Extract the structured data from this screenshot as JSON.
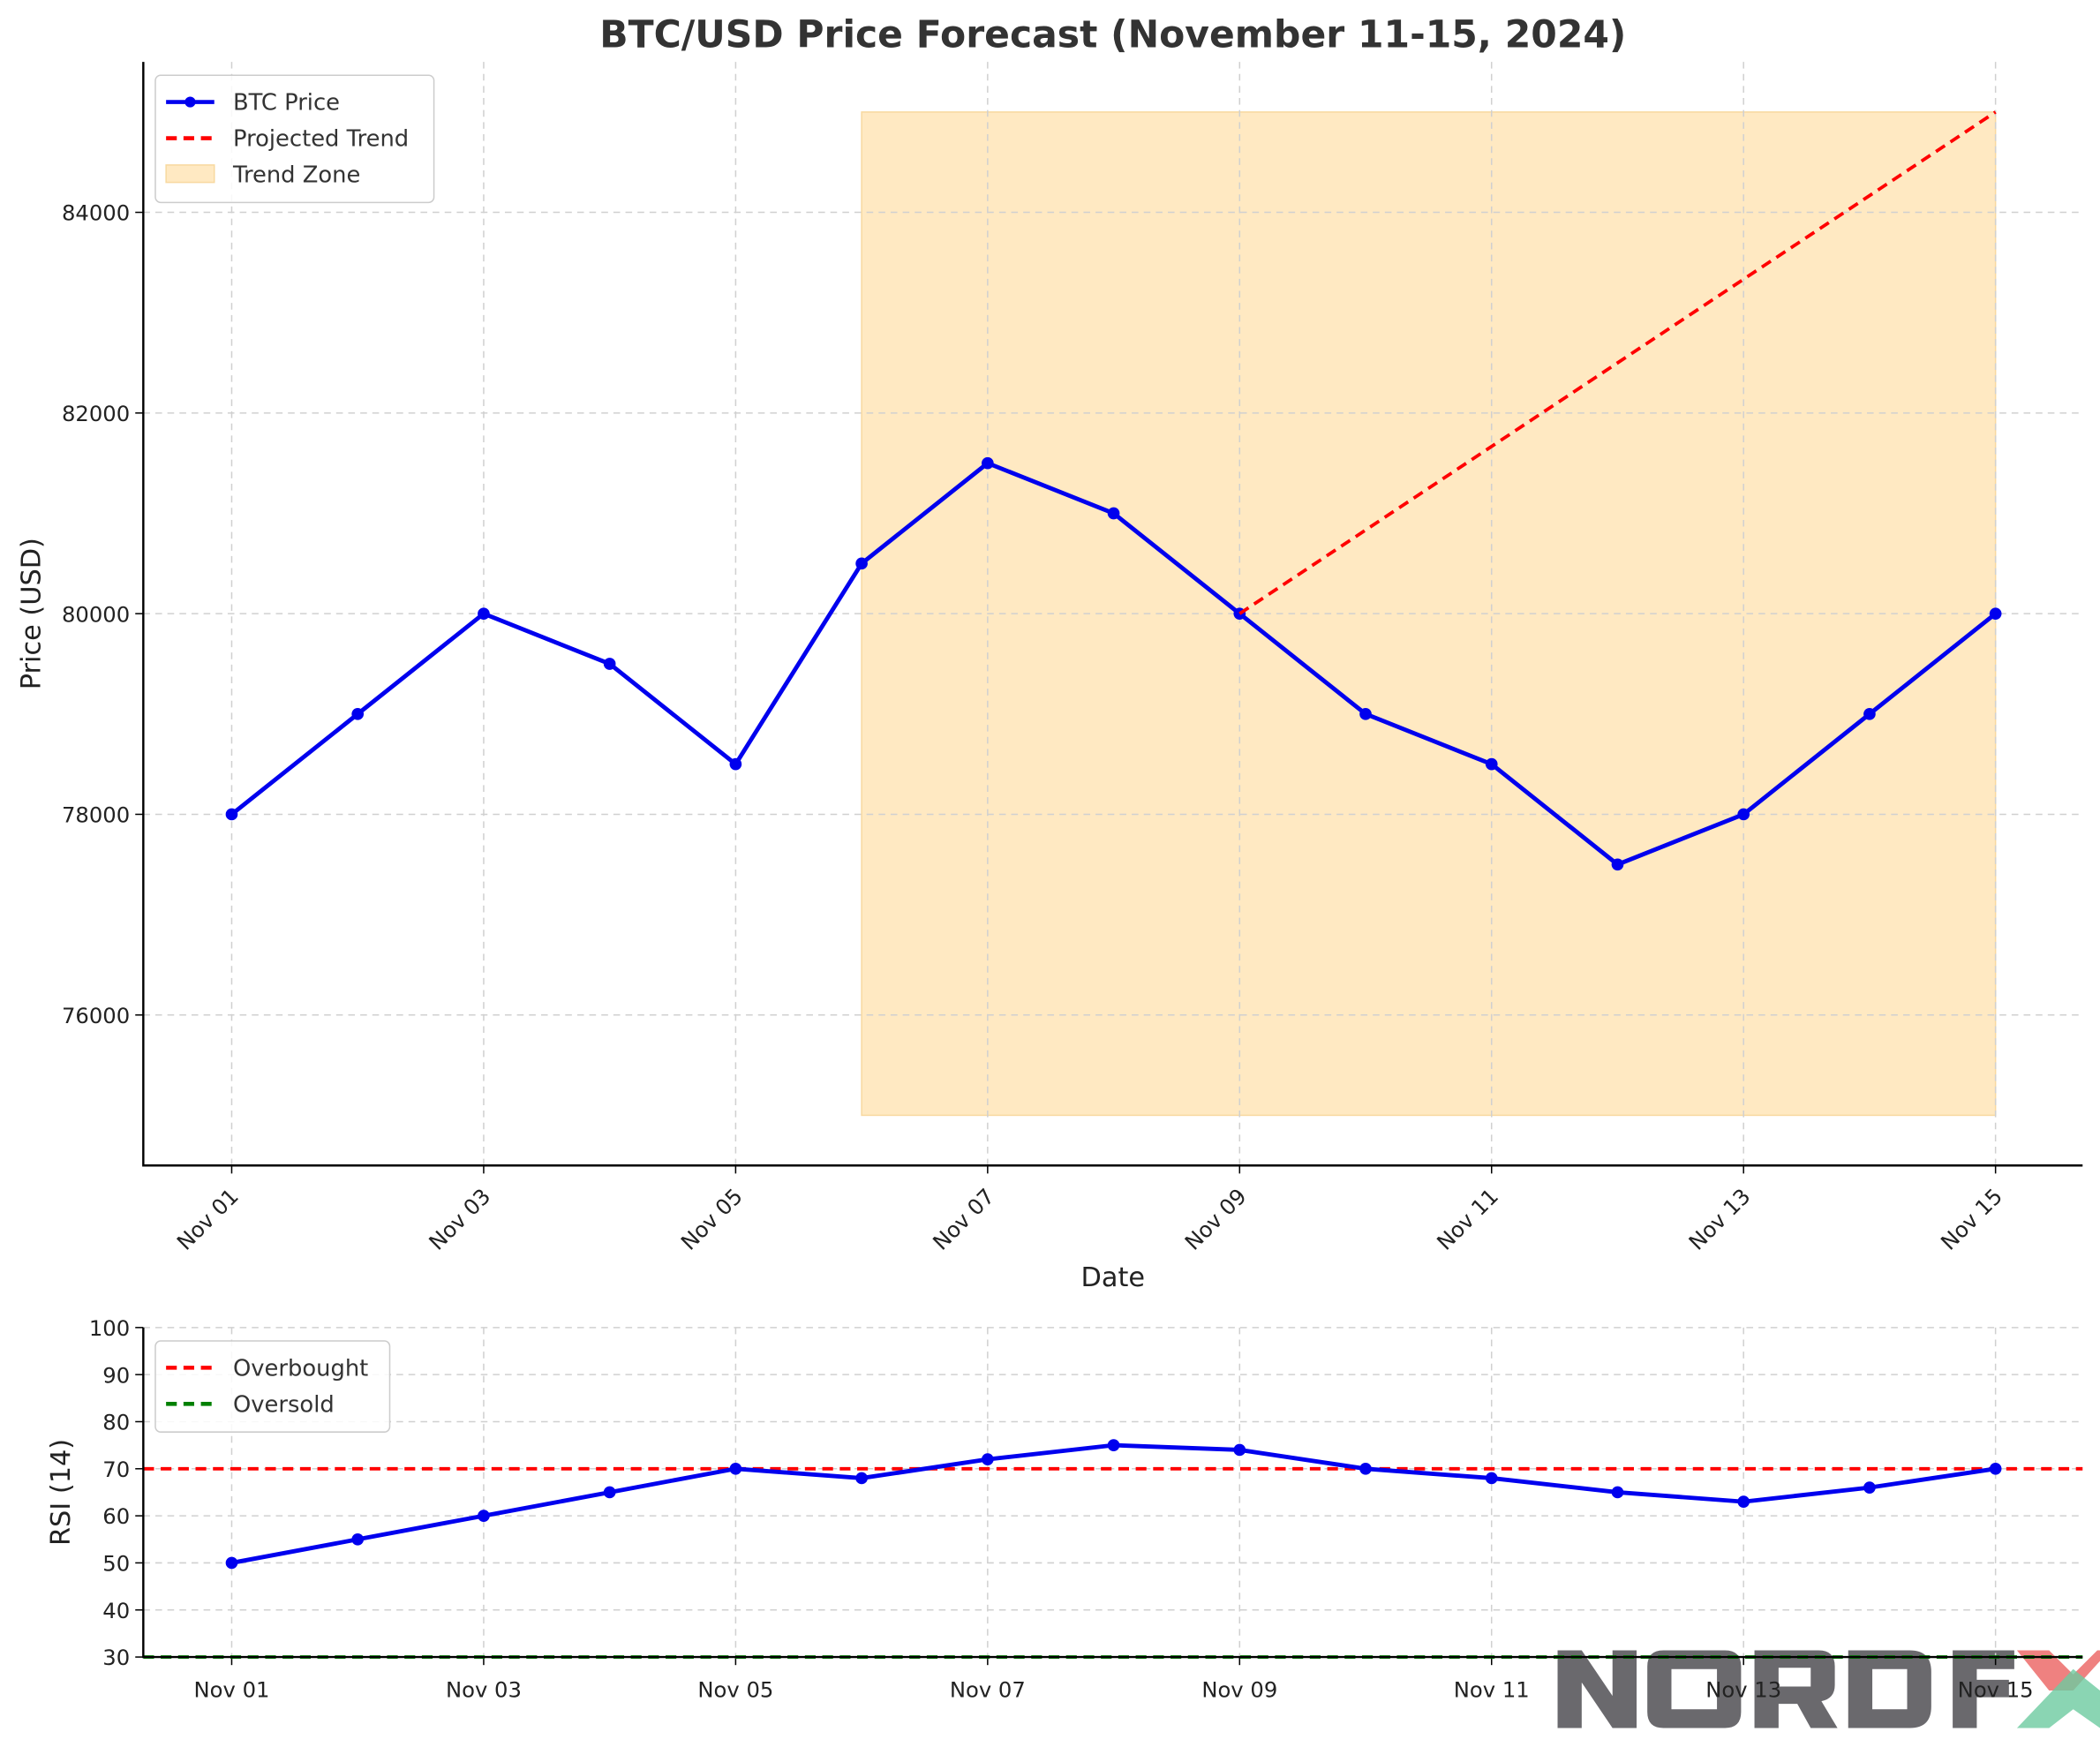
{
  "chart_data": [
    {
      "type": "line",
      "title": "BTC/USD Price Forecast (November 11-15, 2024)",
      "xlabel": "Date",
      "ylabel": "Price (USD)",
      "x": [
        "Nov 01",
        "Nov 02",
        "Nov 03",
        "Nov 04",
        "Nov 05",
        "Nov 06",
        "Nov 07",
        "Nov 08",
        "Nov 09",
        "Nov 10",
        "Nov 11",
        "Nov 12",
        "Nov 13",
        "Nov 14",
        "Nov 15"
      ],
      "x_tick_labels": [
        "Nov 01",
        "Nov 03",
        "Nov 05",
        "Nov 07",
        "Nov 09",
        "Nov 11",
        "Nov 13",
        "Nov 15"
      ],
      "ylim": [
        74500,
        85500
      ],
      "y_ticks": [
        76000,
        78000,
        80000,
        82000,
        84000
      ],
      "grid": true,
      "legend_position": "top-left",
      "series": [
        {
          "name": "BTC Price",
          "color": "#0000ee",
          "style": "solid-with-markers",
          "values": [
            78000,
            79000,
            80000,
            79500,
            78500,
            80500,
            81500,
            81000,
            80000,
            79000,
            78500,
            77500,
            78000,
            79000,
            80000
          ]
        },
        {
          "name": "Projected Trend",
          "color": "#ff0000",
          "style": "dashed",
          "x": [
            "Nov 09",
            "Nov 15"
          ],
          "values": [
            80000,
            85000
          ]
        }
      ],
      "zones": [
        {
          "name": "Trend Zone",
          "color": "#ffe9c2",
          "x_range": [
            "Nov 06",
            "Nov 15"
          ],
          "y_range": [
            75000,
            85000
          ]
        }
      ]
    },
    {
      "type": "line",
      "xlabel": "",
      "ylabel": "RSI (14)",
      "x": [
        "Nov 01",
        "Nov 02",
        "Nov 03",
        "Nov 04",
        "Nov 05",
        "Nov 06",
        "Nov 07",
        "Nov 08",
        "Nov 09",
        "Nov 10",
        "Nov 11",
        "Nov 12",
        "Nov 13",
        "Nov 14",
        "Nov 15"
      ],
      "x_tick_labels": [
        "Nov 01",
        "Nov 03",
        "Nov 05",
        "Nov 07",
        "Nov 09",
        "Nov 11",
        "Nov 13",
        "Nov 15"
      ],
      "ylim": [
        30,
        100
      ],
      "y_ticks": [
        30,
        40,
        50,
        60,
        70,
        80,
        90,
        100
      ],
      "grid": true,
      "legend_position": "top-left",
      "series": [
        {
          "color": "#0000ee",
          "style": "solid-with-markers",
          "values": [
            50,
            55,
            60,
            65,
            70,
            68,
            72,
            75,
            74,
            70,
            68,
            65,
            63,
            66,
            70
          ]
        }
      ],
      "hlines": [
        {
          "name": "Overbought",
          "value": 70,
          "color": "#ff0000"
        },
        {
          "name": "Oversold",
          "value": 30,
          "color": "#008000"
        }
      ]
    }
  ],
  "watermark": {
    "text": "NORD FX",
    "colors": [
      "#5a595e",
      "#e8504f",
      "#5cc495"
    ]
  }
}
